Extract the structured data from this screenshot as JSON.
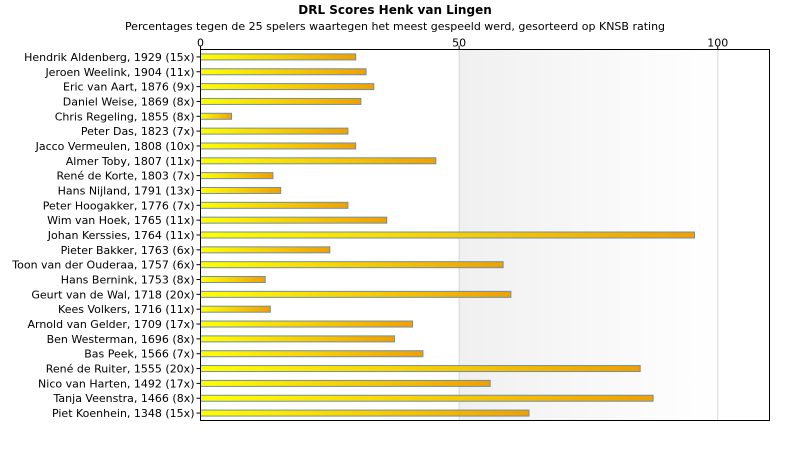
{
  "chart_data": {
    "type": "bar",
    "orientation": "horizontal",
    "title": "DRL Scores Henk van Lingen",
    "subtitle": "Percentages tegen de 25 spelers waartegen het meest gespeeld werd, gesorteerd op KNSB rating",
    "xlabel": "",
    "ylabel": "",
    "xlim": [
      0,
      110
    ],
    "xticks": [
      0,
      50,
      100
    ],
    "grid": true,
    "legend": "none",
    "categories": [
      "Hendrik Aldenberg, 1929 (15x)",
      "Jeroen Weelink, 1904 (11x)",
      "Eric van Aart, 1876 (9x)",
      "Daniel Weise, 1869 (8x)",
      "Chris Regeling, 1855 (8x)",
      "Peter Das, 1823 (7x)",
      "Jacco Vermeulen, 1808 (10x)",
      "Almer Toby, 1807 (11x)",
      "René de Korte, 1803 (7x)",
      "Hans Nijland, 1791 (13x)",
      "Peter Hoogakker, 1776 (7x)",
      "Wim van Hoek, 1765 (11x)",
      "Johan Kerssies, 1764 (11x)",
      "Pieter Bakker, 1763 (6x)",
      "Toon van der Ouderaa, 1757 (6x)",
      "Hans Bernink, 1753 (8x)",
      "Geurt van de Wal, 1718 (20x)",
      "Kees Volkers, 1716 (11x)",
      "Arnold van Gelder, 1709 (17x)",
      "Ben Westerman, 1696 (8x)",
      "Bas Peek, 1566 (7x)",
      "René de Ruiter, 1555 (20x)",
      "Nico van Harten, 1492 (17x)",
      "Tanja Veenstra, 1466 (8x)",
      "Piet Koenhein, 1348 (15x)"
    ],
    "values": [
      30,
      32,
      33.5,
      31,
      6,
      28.5,
      30,
      45.5,
      14,
      15.5,
      28.5,
      36,
      95.5,
      25,
      58.5,
      12.5,
      60,
      13.5,
      41,
      37.5,
      43,
      85,
      56,
      87.5,
      63.5
    ],
    "colors": {
      "bar_start": "#ffff00",
      "bar_end": "#f0a000",
      "bar_outline": "#6f8fa8",
      "band_light": "#ffffff",
      "band_dark": "#f0f0f0"
    }
  }
}
